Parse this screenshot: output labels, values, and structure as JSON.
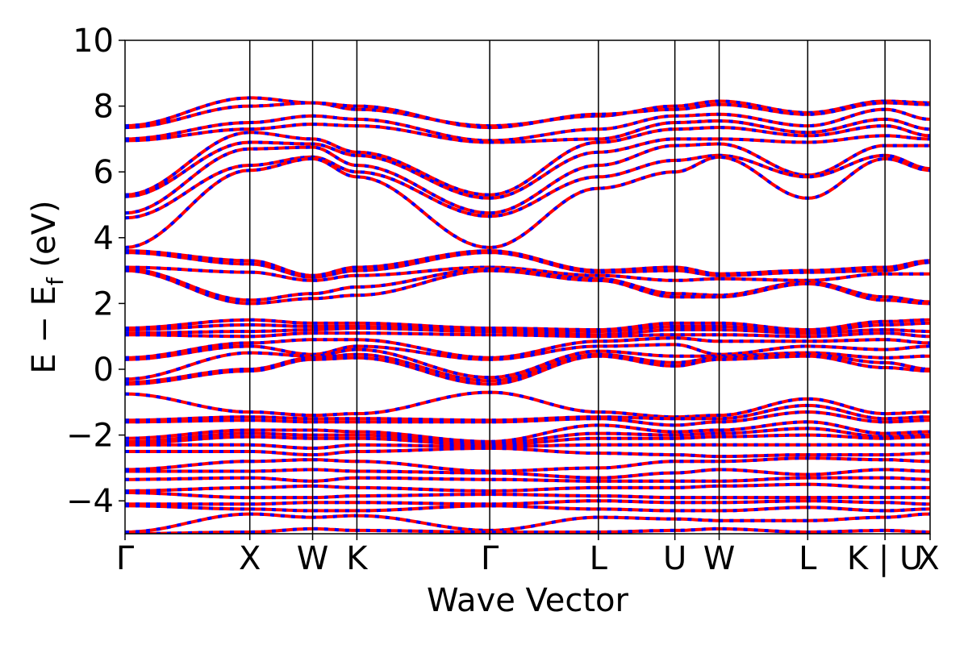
{
  "chart_data": {
    "type": "line",
    "title": "",
    "xlabel": "Wave Vector",
    "ylabel_main": "E − E",
    "ylabel_sub": "f",
    "ylabel_unit": "(eV)",
    "ylim": [
      -5,
      10
    ],
    "y_ticks": [
      -4,
      -2,
      0,
      2,
      4,
      6,
      8,
      10
    ],
    "y_tick_labels": [
      "−4",
      "−2",
      "0",
      "2",
      "4",
      "6",
      "8",
      "10"
    ],
    "xlim": [
      0,
      1
    ],
    "k_points": [
      {
        "label": "Γ",
        "x": 0.0
      },
      {
        "label": "X",
        "x": 0.155
      },
      {
        "label": "W",
        "x": 0.233
      },
      {
        "label": "K",
        "x": 0.288
      },
      {
        "label": "Γ",
        "x": 0.453
      },
      {
        "label": "L",
        "x": 0.588
      },
      {
        "label": "U",
        "x": 0.683
      },
      {
        "label": "W",
        "x": 0.738
      },
      {
        "label": "L",
        "x": 0.848
      },
      {
        "label": "K | U",
        "x": 0.944
      },
      {
        "label": "X",
        "x": 1.0
      }
    ],
    "series_colors": {
      "spin_up": "#ff0000",
      "spin_down": "#0000ff"
    },
    "grid": false,
    "bands": [
      [
        7.4,
        8.25,
        8.1,
        7.9,
        7.4,
        7.7,
        8.0,
        8.15,
        7.8,
        8.15,
        8.1
      ],
      [
        7.35,
        8.0,
        8.1,
        8.0,
        7.35,
        7.75,
        7.9,
        8.05,
        7.75,
        8.1,
        8.05
      ],
      [
        7.0,
        7.5,
        7.7,
        7.6,
        6.95,
        7.3,
        7.7,
        7.75,
        7.4,
        7.9,
        7.6
      ],
      [
        6.95,
        7.3,
        7.45,
        7.4,
        6.9,
        7.0,
        7.5,
        7.55,
        7.2,
        7.6,
        7.3
      ],
      [
        5.3,
        7.2,
        7.0,
        6.6,
        5.3,
        6.9,
        7.3,
        7.35,
        7.1,
        7.4,
        7.1
      ],
      [
        5.25,
        6.9,
        6.85,
        6.5,
        5.2,
        6.6,
        7.0,
        7.0,
        6.9,
        7.1,
        7.0
      ],
      [
        4.75,
        6.7,
        6.75,
        6.2,
        4.75,
        6.2,
        6.8,
        6.85,
        5.9,
        6.8,
        6.8
      ],
      [
        4.6,
        6.2,
        6.45,
        6.0,
        4.65,
        5.85,
        6.35,
        6.5,
        5.85,
        6.5,
        6.1
      ],
      [
        3.7,
        6.05,
        6.4,
        5.85,
        3.7,
        5.5,
        6.0,
        6.45,
        5.2,
        6.4,
        6.05
      ],
      [
        3.6,
        3.3,
        2.85,
        3.1,
        3.6,
        3.0,
        3.1,
        2.9,
        3.0,
        3.1,
        3.3
      ],
      [
        3.55,
        3.2,
        2.8,
        3.0,
        3.55,
        2.95,
        3.0,
        2.85,
        2.95,
        3.0,
        3.25
      ],
      [
        3.1,
        2.95,
        2.7,
        2.85,
        3.1,
        2.85,
        2.7,
        2.75,
        2.7,
        2.9,
        2.9
      ],
      [
        3.05,
        2.1,
        2.3,
        2.5,
        3.05,
        2.75,
        2.3,
        2.25,
        2.65,
        2.2,
        2.05
      ],
      [
        3.0,
        2.0,
        2.15,
        2.25,
        3.0,
        2.7,
        2.2,
        2.2,
        2.6,
        2.1,
        2.0
      ],
      [
        1.25,
        1.5,
        1.4,
        1.4,
        1.25,
        1.2,
        1.4,
        1.4,
        1.2,
        1.45,
        1.5
      ],
      [
        1.2,
        1.35,
        1.3,
        1.3,
        1.2,
        1.15,
        1.3,
        1.3,
        1.15,
        1.35,
        1.4
      ],
      [
        1.1,
        1.15,
        1.2,
        1.25,
        1.15,
        1.05,
        1.2,
        1.2,
        1.1,
        1.2,
        1.15
      ],
      [
        1.05,
        1.0,
        1.1,
        1.1,
        1.05,
        1.0,
        1.05,
        1.05,
        1.0,
        1.1,
        1.0
      ],
      [
        0.35,
        0.8,
        0.9,
        0.9,
        0.35,
        0.85,
        0.95,
        0.85,
        0.85,
        0.9,
        0.8
      ],
      [
        0.3,
        0.7,
        0.45,
        0.7,
        0.3,
        0.7,
        0.75,
        0.45,
        0.7,
        0.6,
        0.7
      ],
      [
        -0.3,
        0.5,
        0.4,
        0.6,
        -0.25,
        0.55,
        0.4,
        0.4,
        0.5,
        0.35,
        0.4
      ],
      [
        -0.4,
        0.0,
        0.35,
        0.45,
        -0.35,
        0.45,
        0.2,
        0.35,
        0.45,
        0.2,
        0.0
      ],
      [
        -0.45,
        -0.05,
        0.3,
        0.35,
        -0.45,
        0.4,
        0.1,
        0.3,
        0.4,
        0.05,
        -0.05
      ],
      [
        -0.75,
        -1.3,
        -1.4,
        -1.35,
        -0.7,
        -1.3,
        -1.45,
        -1.4,
        -0.9,
        -1.35,
        -1.3
      ],
      [
        -1.55,
        -1.45,
        -1.5,
        -1.5,
        -1.55,
        -1.45,
        -1.5,
        -1.5,
        -1.1,
        -1.5,
        -1.45
      ],
      [
        -1.6,
        -1.55,
        -1.6,
        -1.6,
        -1.6,
        -1.5,
        -1.7,
        -1.6,
        -1.3,
        -1.6,
        -1.55
      ],
      [
        -2.1,
        -1.85,
        -1.85,
        -1.9,
        -2.2,
        -1.7,
        -1.9,
        -1.85,
        -1.6,
        -1.95,
        -1.9
      ],
      [
        -2.2,
        -1.95,
        -2.0,
        -2.0,
        -2.25,
        -1.95,
        -2.0,
        -1.95,
        -1.8,
        -2.05,
        -2.0
      ],
      [
        -2.25,
        -2.05,
        -2.1,
        -2.1,
        -2.3,
        -2.1,
        -2.1,
        -2.05,
        -2.0,
        -2.1,
        -2.05
      ],
      [
        -2.3,
        -2.3,
        -2.4,
        -2.3,
        -2.35,
        -2.3,
        -2.3,
        -2.3,
        -2.3,
        -2.3,
        -2.3
      ],
      [
        -2.5,
        -2.5,
        -2.6,
        -2.5,
        -2.4,
        -2.55,
        -2.6,
        -2.65,
        -2.6,
        -2.6,
        -2.55
      ],
      [
        -3.05,
        -2.8,
        -2.75,
        -2.8,
        -3.1,
        -3.0,
        -2.8,
        -2.8,
        -2.7,
        -2.75,
        -2.8
      ],
      [
        -3.1,
        -3.1,
        -3.05,
        -3.1,
        -3.15,
        -3.3,
        -3.15,
        -3.05,
        -3.2,
        -3.05,
        -3.1
      ],
      [
        -3.35,
        -3.3,
        -3.4,
        -3.3,
        -3.35,
        -3.4,
        -3.4,
        -3.4,
        -3.3,
        -3.3,
        -3.35
      ],
      [
        -3.7,
        -3.6,
        -3.55,
        -3.6,
        -3.7,
        -3.6,
        -3.6,
        -3.55,
        -3.5,
        -3.6,
        -3.6
      ],
      [
        -3.75,
        -3.9,
        -3.9,
        -3.85,
        -3.8,
        -3.85,
        -3.9,
        -3.9,
        -3.9,
        -3.9,
        -3.9
      ],
      [
        -4.1,
        -4.1,
        -4.05,
        -4.05,
        -4.1,
        -4.0,
        -4.05,
        -4.05,
        -4.0,
        -4.05,
        -4.1
      ],
      [
        -4.15,
        -4.25,
        -4.3,
        -4.3,
        -4.15,
        -4.25,
        -4.3,
        -4.3,
        -4.2,
        -4.3,
        -4.25
      ],
      [
        -4.95,
        -4.4,
        -4.5,
        -4.45,
        -4.9,
        -4.5,
        -4.55,
        -4.6,
        -4.6,
        -4.5,
        -4.4
      ],
      [
        -5.0,
        -4.95,
        -4.85,
        -4.9,
        -4.95,
        -4.95,
        -4.9,
        -4.85,
        -4.95,
        -4.9,
        -4.95
      ]
    ]
  }
}
